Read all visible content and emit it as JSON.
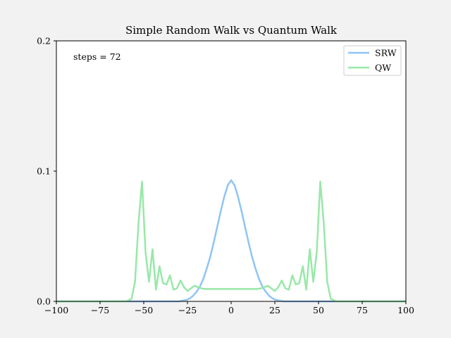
{
  "chart_data": {
    "type": "line",
    "title": "Simple Random Walk vs Quantum Walk",
    "annotation": "steps = 72",
    "xlabel": "",
    "ylabel": "",
    "xlim": [
      -100,
      100
    ],
    "ylim": [
      0,
      0.2
    ],
    "xticks": [
      -100,
      -75,
      -50,
      -25,
      0,
      25,
      50,
      75,
      100
    ],
    "xtick_labels": [
      "−100",
      "−75",
      "−50",
      "−25",
      "0",
      "25",
      "50",
      "75",
      "100"
    ],
    "yticks": [
      0.0,
      0.1,
      0.2
    ],
    "ytick_labels": [
      "0.0",
      "0.1",
      "0.2"
    ],
    "grid": false,
    "legend": "top-right",
    "series": [
      {
        "name": "SRW",
        "color": "#90c4f5",
        "x": [
          -100,
          -30,
          -28,
          -26,
          -24,
          -22,
          -20,
          -18,
          -16,
          -14,
          -12,
          -10,
          -8,
          -6,
          -4,
          -2,
          0,
          2,
          4,
          6,
          8,
          10,
          12,
          14,
          16,
          18,
          20,
          22,
          24,
          26,
          28,
          30,
          100
        ],
        "y": [
          0,
          0,
          0.0005,
          0.001,
          0.002,
          0.004,
          0.007,
          0.011,
          0.017,
          0.025,
          0.034,
          0.045,
          0.057,
          0.069,
          0.08,
          0.089,
          0.093,
          0.089,
          0.08,
          0.069,
          0.057,
          0.045,
          0.034,
          0.025,
          0.017,
          0.011,
          0.007,
          0.004,
          0.002,
          0.001,
          0.0005,
          0,
          0
        ]
      },
      {
        "name": "QW",
        "color": "#98e8a8",
        "x": [
          -100,
          -60,
          -57,
          -55,
          -53,
          -51,
          -49,
          -47,
          -45,
          -43,
          -41,
          -39,
          -37,
          -35,
          -33,
          -31,
          -29,
          -27,
          -25,
          -23,
          -21,
          -19,
          -17,
          -15,
          -10,
          -5,
          0,
          5,
          10,
          15,
          17,
          19,
          21,
          23,
          25,
          27,
          29,
          31,
          33,
          35,
          37,
          39,
          41,
          43,
          45,
          47,
          49,
          51,
          53,
          55,
          57,
          60,
          100
        ],
        "y": [
          0,
          0,
          0.002,
          0.015,
          0.06,
          0.092,
          0.038,
          0.015,
          0.04,
          0.009,
          0.027,
          0.014,
          0.013,
          0.02,
          0.009,
          0.01,
          0.016,
          0.011,
          0.008,
          0.01,
          0.012,
          0.011,
          0.01,
          0.0095,
          0.0095,
          0.0095,
          0.0095,
          0.0095,
          0.0095,
          0.0095,
          0.01,
          0.011,
          0.012,
          0.01,
          0.008,
          0.011,
          0.016,
          0.01,
          0.009,
          0.02,
          0.013,
          0.014,
          0.027,
          0.009,
          0.04,
          0.015,
          0.038,
          0.092,
          0.06,
          0.015,
          0.002,
          0,
          0
        ]
      }
    ]
  }
}
